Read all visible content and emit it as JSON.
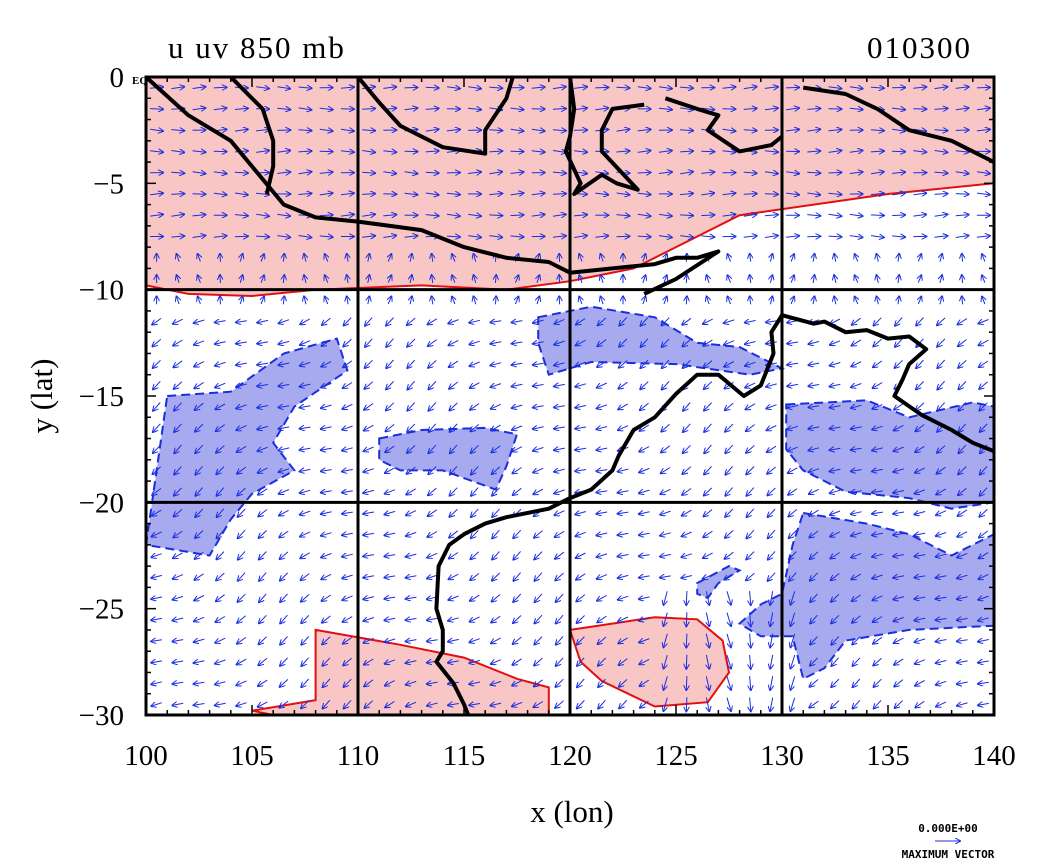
{
  "title_left": "u uv 850 mb",
  "title_right": "010300",
  "x_axis": {
    "label": "x (lon)",
    "min": 100,
    "max": 140,
    "ticks": [
      "100",
      "105",
      "110",
      "115",
      "120",
      "125",
      "130",
      "135",
      "140"
    ],
    "tick_values": [
      100,
      105,
      110,
      115,
      120,
      125,
      130,
      135,
      140
    ],
    "gridlines": [
      110,
      120,
      130
    ]
  },
  "y_axis": {
    "label": "y (lat)",
    "min": -30,
    "max": 0,
    "ticks": [
      "0",
      "−5",
      "−10",
      "−15",
      "−20",
      "−25",
      "−30"
    ],
    "tick_values": [
      0,
      -5,
      -10,
      -15,
      -20,
      -25,
      -30
    ],
    "gridlines": [
      -10,
      -20
    ],
    "zero_suffix": "EQ"
  },
  "vector_key": {
    "value_label": "0.000E+00",
    "caption": "MAXIMUM VECTOR"
  },
  "colors": {
    "positive_fill": "#f9c6c6",
    "positive_line": "#e01010",
    "negative_fill": "#a8aaf0",
    "negative_line": "#1a2ee0",
    "vectors": "#1a2ee0",
    "coastline": "#000000"
  },
  "regions": {
    "positive": [
      [
        [
          100,
          0
        ],
        [
          140,
          0
        ],
        [
          140,
          -5
        ],
        [
          135,
          -5.5
        ],
        [
          128,
          -6.5
        ],
        [
          125,
          -8
        ],
        [
          123,
          -9
        ],
        [
          120,
          -9.6
        ],
        [
          117,
          -10
        ],
        [
          113,
          -9.8
        ],
        [
          108,
          -10
        ],
        [
          105,
          -10.3
        ],
        [
          102,
          -10.2
        ],
        [
          100,
          -9.8
        ]
      ],
      [
        [
          108,
          -26
        ],
        [
          112,
          -26.7
        ],
        [
          115,
          -27.3
        ],
        [
          117.5,
          -28.3
        ],
        [
          119,
          -28.7
        ],
        [
          119,
          -30
        ],
        [
          110,
          -30
        ],
        [
          106,
          -30
        ],
        [
          105,
          -29.8
        ],
        [
          108,
          -29.3
        ],
        [
          108,
          -28
        ]
      ],
      [
        [
          120,
          -26
        ],
        [
          122,
          -25.7
        ],
        [
          124,
          -25.4
        ],
        [
          126,
          -25.5
        ],
        [
          127.2,
          -26.5
        ],
        [
          127.5,
          -28
        ],
        [
          126.5,
          -29.4
        ],
        [
          124,
          -29.6
        ],
        [
          121.5,
          -28.4
        ],
        [
          120.5,
          -27.5
        ]
      ]
    ],
    "negative": [
      [
        [
          101,
          -15
        ],
        [
          104,
          -14.8
        ],
        [
          106.5,
          -13
        ],
        [
          109,
          -12.3
        ],
        [
          109.5,
          -13.8
        ],
        [
          107,
          -15.5
        ],
        [
          106,
          -17.2
        ],
        [
          107,
          -18.5
        ],
        [
          105,
          -19.6
        ],
        [
          104,
          -20.8
        ],
        [
          103,
          -22.5
        ],
        [
          100,
          -22
        ]
      ],
      [
        [
          111,
          -17
        ],
        [
          113,
          -16.6
        ],
        [
          116,
          -16.5
        ],
        [
          117.5,
          -16.8
        ],
        [
          117,
          -18.3
        ],
        [
          116.5,
          -19.4
        ],
        [
          114,
          -18.5
        ],
        [
          112,
          -18.5
        ],
        [
          111,
          -18
        ]
      ],
      [
        [
          118.5,
          -11.3
        ],
        [
          121,
          -10.8
        ],
        [
          124,
          -11.3
        ],
        [
          126,
          -12.5
        ],
        [
          128,
          -12.7
        ],
        [
          130,
          -13.7
        ],
        [
          128.5,
          -14
        ],
        [
          125,
          -13.5
        ],
        [
          121,
          -13.4
        ],
        [
          119,
          -14
        ],
        [
          118.5,
          -12.5
        ]
      ],
      [
        [
          130.2,
          -15.4
        ],
        [
          134,
          -15.2
        ],
        [
          136,
          -16
        ],
        [
          139,
          -15.3
        ],
        [
          140,
          -15.5
        ],
        [
          140,
          -20
        ],
        [
          138,
          -20.3
        ],
        [
          136,
          -19.8
        ],
        [
          133,
          -19.5
        ],
        [
          131,
          -18.5
        ],
        [
          130.2,
          -17.5
        ]
      ],
      [
        [
          131,
          -20.5
        ],
        [
          134,
          -21
        ],
        [
          136,
          -21.5
        ],
        [
          138,
          -22.5
        ],
        [
          140,
          -21.5
        ],
        [
          140,
          -25.8
        ],
        [
          136,
          -26
        ],
        [
          133,
          -26.5
        ],
        [
          132,
          -27.8
        ],
        [
          131,
          -28.3
        ],
        [
          130.5,
          -26.3
        ],
        [
          129,
          -26.3
        ],
        [
          128,
          -25.7
        ],
        [
          129,
          -24.8
        ],
        [
          130,
          -24.3
        ],
        [
          130.5,
          -22
        ]
      ],
      [
        [
          126,
          -23.8
        ],
        [
          127.5,
          -23
        ],
        [
          128,
          -23.2
        ],
        [
          127,
          -23.8
        ],
        [
          126.5,
          -24.5
        ],
        [
          126,
          -24.3
        ]
      ]
    ]
  },
  "coastlines": [
    [
      [
        100,
        0
      ],
      [
        102,
        -1.8
      ],
      [
        104,
        -3
      ],
      [
        105.5,
        -4.8
      ],
      [
        106.5,
        -6
      ],
      [
        108,
        -6.6
      ],
      [
        110,
        -6.8
      ],
      [
        113,
        -7.2
      ],
      [
        115,
        -8
      ],
      [
        117,
        -8.5
      ],
      [
        119,
        -8.7
      ],
      [
        120,
        -9.2
      ],
      [
        122,
        -9
      ],
      [
        124,
        -8.8
      ],
      [
        125,
        -8.5
      ],
      [
        126,
        -8.5
      ],
      [
        127,
        -8.2
      ],
      [
        125,
        -9.5
      ],
      [
        123.5,
        -10.2
      ]
    ],
    [
      [
        104,
        0
      ],
      [
        105.5,
        -1.5
      ],
      [
        106,
        -3
      ],
      [
        106,
        -4.2
      ],
      [
        105.7,
        -5.5
      ]
    ],
    [
      [
        110,
        0
      ],
      [
        111,
        -1.2
      ],
      [
        112,
        -2.3
      ],
      [
        114,
        -3.3
      ],
      [
        116,
        -3.6
      ],
      [
        116,
        -2.5
      ],
      [
        117,
        -1
      ],
      [
        117.3,
        0
      ]
    ],
    [
      [
        120,
        0
      ],
      [
        120.2,
        -1.5
      ],
      [
        120,
        -2.8
      ],
      [
        119.8,
        -3.5
      ],
      [
        120.5,
        -5
      ],
      [
        120.2,
        -5.5
      ],
      [
        121.5,
        -4.6
      ],
      [
        122.2,
        -5
      ],
      [
        123.2,
        -5.3
      ],
      [
        121.5,
        -3.5
      ],
      [
        121.5,
        -2.5
      ],
      [
        122,
        -1.5
      ],
      [
        123.5,
        -1.3
      ]
    ],
    [
      [
        124.5,
        -1
      ],
      [
        126,
        -1.5
      ],
      [
        127,
        -1.8
      ],
      [
        126.5,
        -2.5
      ],
      [
        128,
        -3.5
      ],
      [
        129.5,
        -3.2
      ],
      [
        130,
        -2.8
      ]
    ],
    [
      [
        131,
        -0.5
      ],
      [
        133,
        -0.8
      ],
      [
        134.5,
        -1.5
      ],
      [
        136,
        -2.5
      ],
      [
        138,
        -3
      ],
      [
        139,
        -3.5
      ],
      [
        140,
        -4
      ]
    ],
    [
      [
        130,
        -11.2
      ],
      [
        131.5,
        -11.6
      ],
      [
        132,
        -11.5
      ],
      [
        133,
        -12
      ],
      [
        134,
        -11.9
      ],
      [
        135,
        -12.3
      ],
      [
        136,
        -12.2
      ],
      [
        136.8,
        -12.8
      ],
      [
        136,
        -13.5
      ],
      [
        135.7,
        -14.2
      ],
      [
        135.3,
        -15
      ],
      [
        136.6,
        -15.9
      ],
      [
        138,
        -16.6
      ],
      [
        139,
        -17.2
      ],
      [
        140,
        -17.6
      ]
    ],
    [
      [
        130,
        -11.2
      ],
      [
        129.5,
        -12
      ],
      [
        129.6,
        -13
      ],
      [
        129,
        -14.5
      ],
      [
        128.2,
        -15
      ],
      [
        127,
        -14
      ],
      [
        126,
        -14
      ],
      [
        125,
        -14.9
      ],
      [
        124,
        -16
      ],
      [
        123,
        -16.6
      ],
      [
        122.3,
        -17.8
      ],
      [
        122,
        -18.5
      ],
      [
        121,
        -19.4
      ],
      [
        120,
        -19.8
      ],
      [
        119,
        -20.3
      ],
      [
        117,
        -20.7
      ],
      [
        116,
        -21
      ],
      [
        115,
        -21.5
      ],
      [
        114.3,
        -22
      ],
      [
        113.8,
        -23
      ],
      [
        113.7,
        -25
      ],
      [
        114,
        -26
      ],
      [
        114,
        -27
      ],
      [
        113.7,
        -27.5
      ],
      [
        114.5,
        -28.5
      ],
      [
        115,
        -29.5
      ],
      [
        115.2,
        -30
      ]
    ]
  ],
  "vector_field": {
    "grid_spacing_deg": 1,
    "note": "850 mb winds: easterlies south of 10S, westerlies north of 8S"
  }
}
